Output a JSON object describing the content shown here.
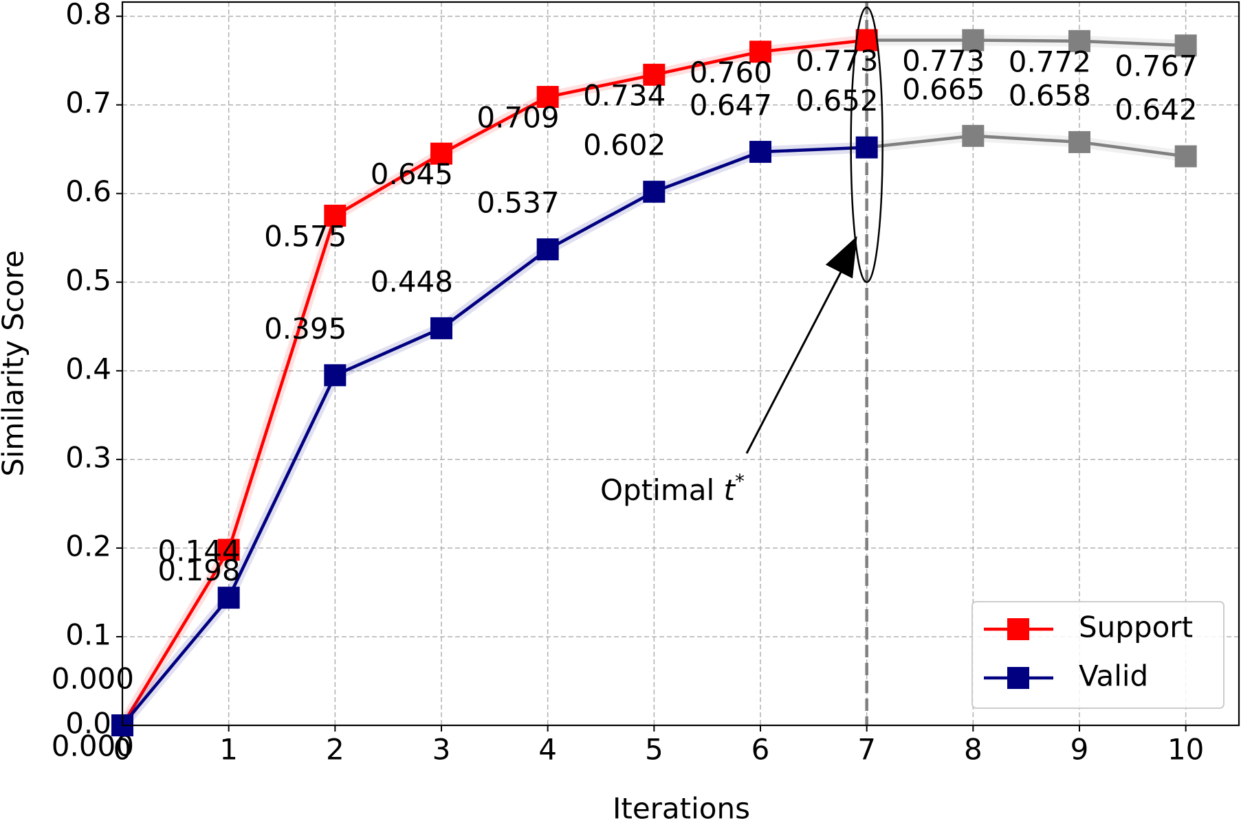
{
  "chart_data": {
    "type": "line",
    "xlabel": "Iterations",
    "ylabel": "Similarity Score",
    "x": [
      0,
      1,
      2,
      3,
      4,
      5,
      6,
      7,
      8,
      9,
      10
    ],
    "series": [
      {
        "name": "Support",
        "color": "#ff0000",
        "values": [
          0,
          0.198,
          0.575,
          0.645,
          0.709,
          0.734,
          0.76,
          0.773,
          0.773,
          0.772,
          0.767
        ],
        "value_labels": [
          "0.000",
          "0.198",
          "0.575",
          "0.645",
          "0.709",
          "0.734",
          "0.760",
          "0.773",
          "0.773",
          "0.772",
          "0.767"
        ]
      },
      {
        "name": "Valid",
        "color": "#000080",
        "values": [
          0,
          0.144,
          0.395,
          0.448,
          0.537,
          0.602,
          0.647,
          0.652,
          0.665,
          0.658,
          0.642
        ],
        "value_labels": [
          "0.000",
          "0.144",
          "0.395",
          "0.448",
          "0.537",
          "0.602",
          "0.647",
          "0.652",
          "0.665",
          "0.658",
          "0.642"
        ]
      }
    ],
    "after_optimal_color": "#808080",
    "optimal_x": 7,
    "annotation": {
      "text": "Optimal ",
      "symbol": "t",
      "superscript": "*"
    },
    "xlim": [
      0,
      10.5
    ],
    "xticks": [
      0,
      1,
      2,
      3,
      4,
      5,
      6,
      7,
      8,
      9,
      10
    ],
    "ylim": [
      0,
      0.816
    ],
    "yticks": [
      {
        "value": 0,
        "label": "0.0"
      },
      {
        "value": 0.1,
        "label": "0.1"
      },
      {
        "value": 0.2,
        "label": "0.2"
      },
      {
        "value": 0.3,
        "label": "0.3"
      },
      {
        "value": 0.4,
        "label": "0.4"
      },
      {
        "value": 0.5,
        "label": "0.5"
      },
      {
        "value": 0.6,
        "label": "0.6"
      },
      {
        "value": 0.7,
        "label": "0.7"
      },
      {
        "value": 0.8,
        "label": "0.8"
      }
    ],
    "grid": true,
    "legend": "lower right"
  }
}
